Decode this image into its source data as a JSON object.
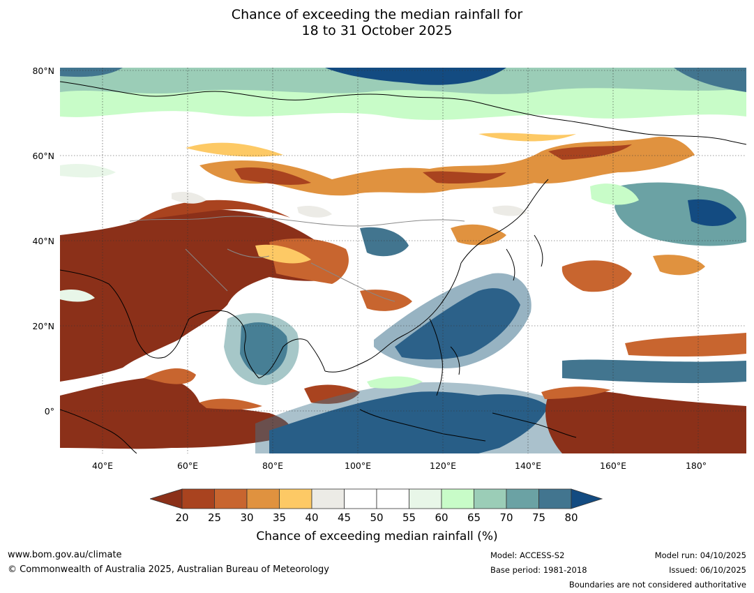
{
  "title": {
    "line1": "Chance of exceeding the median rainfall for",
    "line2": "18 to 31 October 2025"
  },
  "map": {
    "lat_labels": [
      "80°N",
      "60°N",
      "40°N",
      "20°N",
      "0°"
    ],
    "lon_labels": [
      "40°E",
      "60°E",
      "80°E",
      "100°E",
      "120°E",
      "140°E",
      "160°E",
      "180°"
    ],
    "regions": [
      {
        "name": "middle-east-central-asia-dry",
        "category": "20"
      },
      {
        "name": "east-africa-indian-ocean-dry",
        "category": "20"
      },
      {
        "name": "bay-of-bengal-wet",
        "category": "80"
      },
      {
        "name": "south-china-sea-philippines-wet",
        "category": "80"
      },
      {
        "name": "indonesia-indian-ocean-wet",
        "category": "80"
      },
      {
        "name": "pacific-north-of-png-dry",
        "category": "20"
      },
      {
        "name": "siberia-band-dry",
        "category": "30"
      },
      {
        "name": "north-pacific-wet",
        "category": "75"
      },
      {
        "name": "arctic-wet",
        "category": "80"
      }
    ]
  },
  "colorbar": {
    "ticks": [
      "20",
      "25",
      "30",
      "35",
      "40",
      "45",
      "50",
      "55",
      "60",
      "65",
      "70",
      "75",
      "80"
    ],
    "colors": [
      "#8b3019",
      "#a9431f",
      "#c8652f",
      "#e0923f",
      "#fdc965",
      "#ecebe6",
      "#ffffff",
      "#ffffff",
      "#e8f6e8",
      "#c8fcc8",
      "#9bcdb7",
      "#6ba2a4",
      "#42758f",
      "#134b81"
    ],
    "label": "Chance of exceeding median rainfall (%)"
  },
  "footer": {
    "website": "www.bom.gov.au/climate",
    "copyright": "© Commonwealth of Australia 2025, Australian Bureau of Meteorology",
    "model": "Model: ACCESS-S2",
    "base_period": "Base period: 1981-2018",
    "model_run": "Model run: 04/10/2025",
    "issued": "Issued: 06/10/2025",
    "disclaimer": "Boundaries are not considered authoritative"
  }
}
